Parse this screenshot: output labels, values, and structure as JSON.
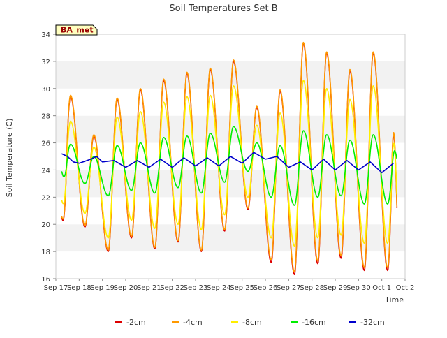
{
  "chart_data": {
    "type": "line",
    "title": "Soil Temperatures Set B",
    "xlabel": "Time",
    "ylabel": "Soil Temperature (C)",
    "badge": "BA_met",
    "ylim": [
      16,
      34
    ],
    "yticks": [
      16,
      18,
      20,
      22,
      24,
      26,
      28,
      30,
      32,
      34
    ],
    "xlim": [
      "2016-09-17",
      "2016-10-02"
    ],
    "xticks": [
      "Sep 17",
      "Sep 18",
      "Sep 19",
      "Sep 20",
      "Sep 21",
      "Sep 22",
      "Sep 23",
      "Sep 24",
      "Sep 25",
      "Sep 26",
      "Sep 27",
      "Sep 28",
      "Sep 29",
      "Sep 30",
      "Oct 1",
      "Oct 2"
    ],
    "grid": "horizontal alternating bands",
    "legend_position": "bottom",
    "series": [
      {
        "name": "-2cm",
        "color": "#dd0000",
        "daily_min": [
          19.0,
          19.8,
          18.0,
          19.0,
          18.2,
          18.7,
          18.0,
          19.5,
          21.1,
          17.2,
          16.3,
          17.1,
          17.5,
          16.6
        ],
        "daily_max": [
          29.4,
          26.5,
          29.2,
          29.9,
          30.6,
          31.1,
          31.4,
          32.0,
          28.6,
          29.8,
          33.3,
          32.6,
          31.3,
          32.6
        ],
        "start": 20.5,
        "end": 21.2
      },
      {
        "name": "-4cm",
        "color": "#ff9900",
        "daily_min": [
          19.1,
          19.9,
          18.1,
          19.1,
          18.3,
          18.8,
          18.1,
          19.6,
          21.2,
          17.4,
          16.5,
          17.3,
          17.7,
          16.8
        ],
        "daily_max": [
          29.5,
          26.6,
          29.3,
          30.0,
          30.7,
          31.2,
          31.5,
          32.1,
          28.7,
          29.9,
          33.4,
          32.7,
          31.4,
          32.7
        ],
        "start": 20.6,
        "end": 21.3
      },
      {
        "name": "-8cm",
        "color": "#ffee00",
        "daily_min": [
          20.2,
          20.8,
          19.0,
          20.3,
          19.7,
          20.0,
          19.6,
          20.7,
          22.0,
          19.0,
          18.4,
          19.0,
          19.2,
          18.6
        ],
        "daily_max": [
          27.6,
          25.7,
          27.9,
          28.3,
          29.0,
          29.4,
          29.5,
          30.2,
          27.3,
          28.2,
          30.6,
          30.0,
          29.2,
          30.2
        ],
        "start": 21.8,
        "end": 22.2
      },
      {
        "name": "-16cm",
        "color": "#00ee00",
        "daily_min": [
          22.3,
          23.0,
          22.1,
          22.5,
          22.3,
          22.7,
          22.3,
          23.1,
          23.9,
          22.0,
          21.4,
          22.0,
          22.1,
          21.5
        ],
        "daily_max": [
          25.9,
          25.0,
          25.8,
          26.0,
          26.4,
          26.5,
          26.7,
          27.2,
          26.0,
          25.8,
          26.9,
          26.6,
          26.2,
          26.6
        ],
        "start": 23.9,
        "end": 24.8
      },
      {
        "name": "-32cm",
        "color": "#0000cc",
        "points": [
          [
            "2016-09-17 06:00",
            25.2
          ],
          [
            "2016-09-17 12:00",
            25.0
          ],
          [
            "2016-09-17 18:00",
            24.6
          ],
          [
            "2016-09-18 00:00",
            24.5
          ],
          [
            "2016-09-18 12:00",
            24.8
          ],
          [
            "2016-09-18 18:00",
            25.0
          ],
          [
            "2016-09-19 00:00",
            24.6
          ],
          [
            "2016-09-19 12:00",
            24.7
          ],
          [
            "2016-09-20 00:00",
            24.2
          ],
          [
            "2016-09-20 12:00",
            24.7
          ],
          [
            "2016-09-21 00:00",
            24.2
          ],
          [
            "2016-09-21 12:00",
            24.8
          ],
          [
            "2016-09-22 00:00",
            24.2
          ],
          [
            "2016-09-22 12:00",
            24.9
          ],
          [
            "2016-09-23 00:00",
            24.3
          ],
          [
            "2016-09-23 12:00",
            24.9
          ],
          [
            "2016-09-24 00:00",
            24.3
          ],
          [
            "2016-09-24 12:00",
            25.0
          ],
          [
            "2016-09-25 00:00",
            24.5
          ],
          [
            "2016-09-25 12:00",
            25.3
          ],
          [
            "2016-09-26 00:00",
            24.8
          ],
          [
            "2016-09-26 12:00",
            25.0
          ],
          [
            "2016-09-27 00:00",
            24.2
          ],
          [
            "2016-09-27 12:00",
            24.6
          ],
          [
            "2016-09-28 00:00",
            24.0
          ],
          [
            "2016-09-28 12:00",
            24.8
          ],
          [
            "2016-09-29 00:00",
            24.0
          ],
          [
            "2016-09-29 12:00",
            24.7
          ],
          [
            "2016-09-30 00:00",
            24.0
          ],
          [
            "2016-09-30 12:00",
            24.6
          ],
          [
            "2016-10-01 00:00",
            23.8
          ],
          [
            "2016-10-01 12:00",
            24.5
          ]
        ]
      }
    ]
  }
}
